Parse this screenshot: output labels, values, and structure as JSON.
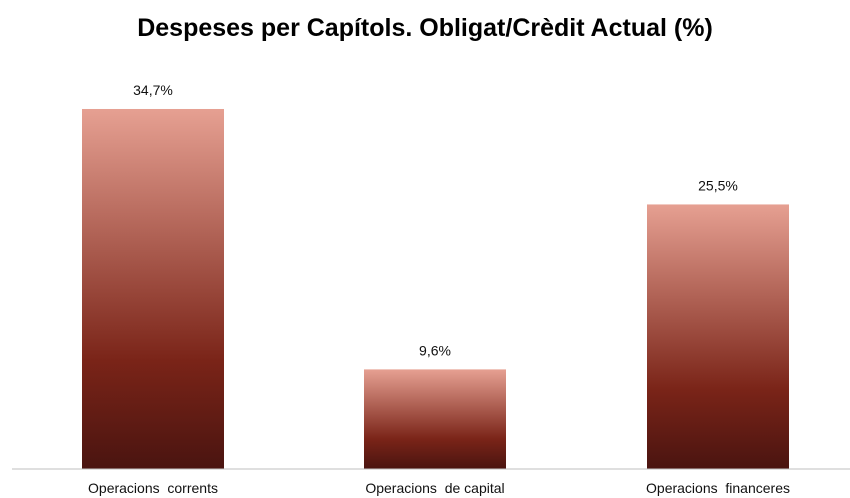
{
  "chart_data": {
    "type": "bar",
    "title": "Despeses per Capítols. Obligat/Crèdit Actual (%)",
    "categories": [
      "Operacions  corrents",
      "Operacions  de capital",
      "Operacions  financeres"
    ],
    "values": [
      34.7,
      9.6,
      25.5
    ],
    "value_labels": [
      "34,7%",
      "9,6%",
      "25,5%"
    ],
    "xlabel": "",
    "ylabel": "",
    "ylim": [
      0,
      40
    ],
    "grid": false,
    "legend": "none",
    "colors": {
      "bar_top": "#e6a092",
      "bar_mid": "#7a2418",
      "bar_bottom": "#4a1410",
      "axis": "#bfbfbf"
    }
  }
}
